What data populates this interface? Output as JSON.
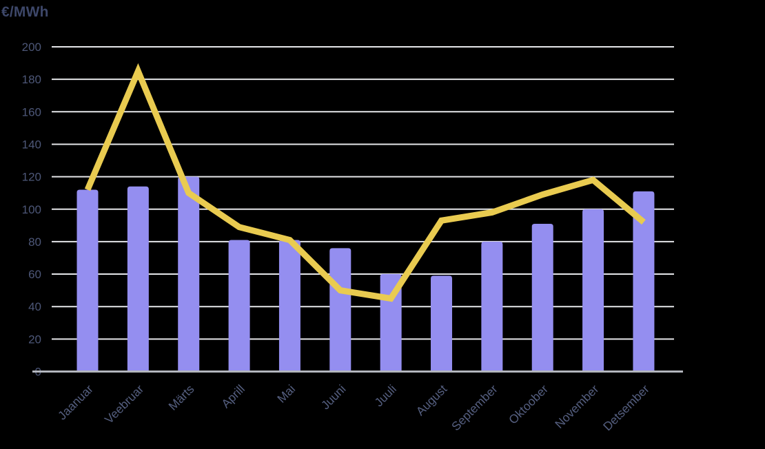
{
  "title": "€/MWh",
  "colors": {
    "background": "#000000",
    "bar": "#948ef0",
    "line": "#e9cb50",
    "grid": "#e6e7ea",
    "axis": "#b3b6bd",
    "title_text": "#3d4769",
    "ytick_text": "#4d5778",
    "xtick_text": "#555f80"
  },
  "chart_data": {
    "type": "bar",
    "title": "€/MWh",
    "ylabel": "€/MWh",
    "xlabel": "",
    "categories": [
      "Jaanuar",
      "Veebruar",
      "Märts",
      "Aprill",
      "Mai",
      "Juuni",
      "Juuli",
      "August",
      "September",
      "Oktoober",
      "November",
      "Detsember"
    ],
    "series": [
      {
        "name": "bars",
        "type": "bar",
        "values": [
          112,
          114,
          120,
          81,
          81,
          76,
          60,
          59,
          80,
          91,
          100,
          111
        ]
      },
      {
        "name": "line",
        "type": "line",
        "values": [
          112,
          185,
          110,
          89,
          81,
          50,
          45,
          93,
          98,
          109,
          118,
          92
        ]
      }
    ],
    "ylim": [
      0,
      200
    ],
    "yticks": [
      0,
      20,
      40,
      60,
      80,
      100,
      120,
      140,
      160,
      180,
      200
    ],
    "grid": true,
    "legend": false,
    "x_labels_rotation_deg": -45
  }
}
